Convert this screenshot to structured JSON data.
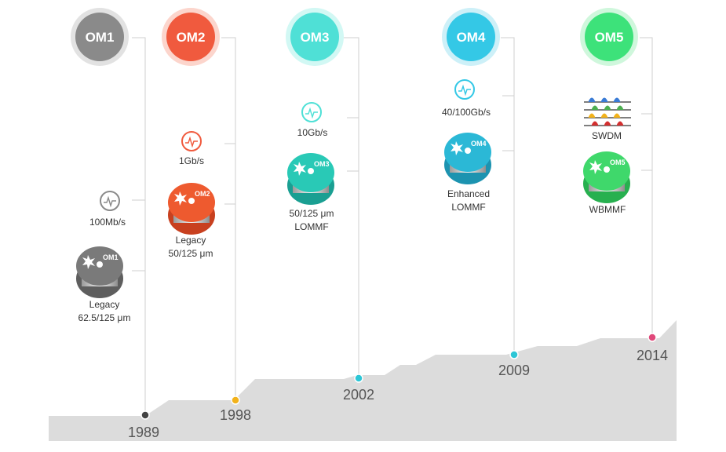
{
  "generations": [
    {
      "id": "om1",
      "badge": "OM1",
      "color": "#8a8a8a",
      "ring_color": "#e0e0e0",
      "year": "1989",
      "dot_color": "#444444",
      "speed": "100Mb/s",
      "speed_icon": "speedometer-icon",
      "fiber_label_1": "Legacy",
      "fiber_label_2": "62.5/125 μm",
      "spool_label": "OM1",
      "spool_color": "#777777"
    },
    {
      "id": "om2",
      "badge": "OM2",
      "color": "#f05a3e",
      "ring_color": "#fcd5cc",
      "year": "1998",
      "dot_color": "#f2b21b",
      "speed": "1Gb/s",
      "speed_icon": "speedometer-icon",
      "fiber_label_1": "Legacy",
      "fiber_label_2": "50/125 μm",
      "spool_label": "OM2",
      "spool_color": "#ee5a2f"
    },
    {
      "id": "om3",
      "badge": "OM3",
      "color": "#4fe0d6",
      "ring_color": "#d2f8f4",
      "year": "2002",
      "dot_color": "#2cc6d6",
      "speed": "10Gb/s",
      "speed_icon": "speedometer-icon",
      "fiber_label_1": "50/125 μm",
      "fiber_label_2": "LOMMF",
      "spool_label": "OM3",
      "spool_color": "#29c9b6"
    },
    {
      "id": "om4",
      "badge": "OM4",
      "color": "#34c8e6",
      "ring_color": "#cdf0f8",
      "year": "2009",
      "dot_color": "#2cc6d6",
      "speed": "40/100Gb/s",
      "speed_icon": "speedometer-icon",
      "fiber_label_1": "Enhanced",
      "fiber_label_2": "LOMMF",
      "spool_label": "OM4",
      "spool_color": "#2bb8d6"
    },
    {
      "id": "om5",
      "badge": "OM5",
      "color": "#3de27a",
      "ring_color": "#cff7dc",
      "year": "2014",
      "dot_color": "#e0487a",
      "speed": "SWDM",
      "speed_icon": "wavelength-icon",
      "fiber_label_1": "WBMMF",
      "fiber_label_2": "",
      "spool_label": "OM5",
      "spool_color": "#3fd86b"
    }
  ]
}
